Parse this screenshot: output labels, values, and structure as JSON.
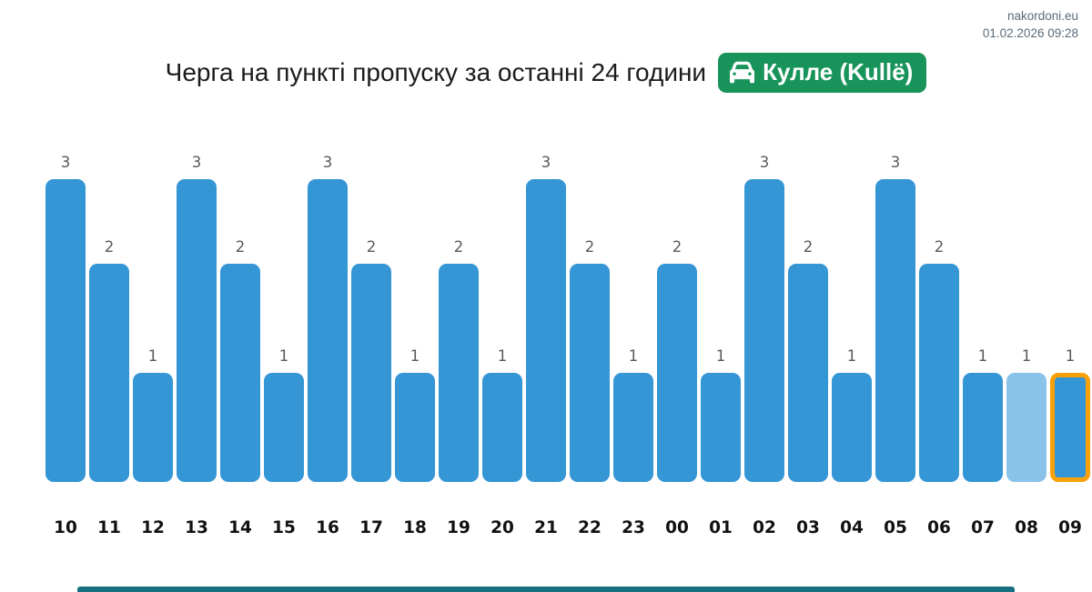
{
  "header": {
    "site": "nakordoni.eu",
    "datetime": "01.02.2026 09:28"
  },
  "title": {
    "text": "Черга на пункті пропуску за останні 24 години",
    "badge_label": "Кулле (Kullë)",
    "badge_color": "#18945a",
    "badge_icon": "car-icon"
  },
  "chart_data": {
    "type": "bar",
    "title": "Черга на пункті пропуску за останні 24 години",
    "categories": [
      "10",
      "11",
      "12",
      "13",
      "14",
      "15",
      "16",
      "17",
      "18",
      "19",
      "20",
      "21",
      "22",
      "23",
      "00",
      "01",
      "02",
      "03",
      "04",
      "05",
      "06",
      "07",
      "08",
      "09"
    ],
    "values": [
      3,
      2,
      1,
      3,
      2,
      1,
      3,
      2,
      1,
      2,
      1,
      3,
      2,
      1,
      2,
      1,
      3,
      2,
      1,
      3,
      2,
      1,
      1,
      1
    ],
    "xlabel": "",
    "ylabel": "",
    "ylim": [
      0,
      3
    ],
    "grid": false,
    "legend": false,
    "value_labels": true,
    "bar_color": "#3596d6",
    "muted_bar_color": "#8ac3ea",
    "muted_categories": [
      "08"
    ],
    "highlighted_category": "09",
    "highlight_border_color": "#f9a109",
    "value_label_color": "#58595b",
    "axis_label_color": "#111111"
  },
  "footer": {
    "partial_element_color": "#17707f"
  }
}
